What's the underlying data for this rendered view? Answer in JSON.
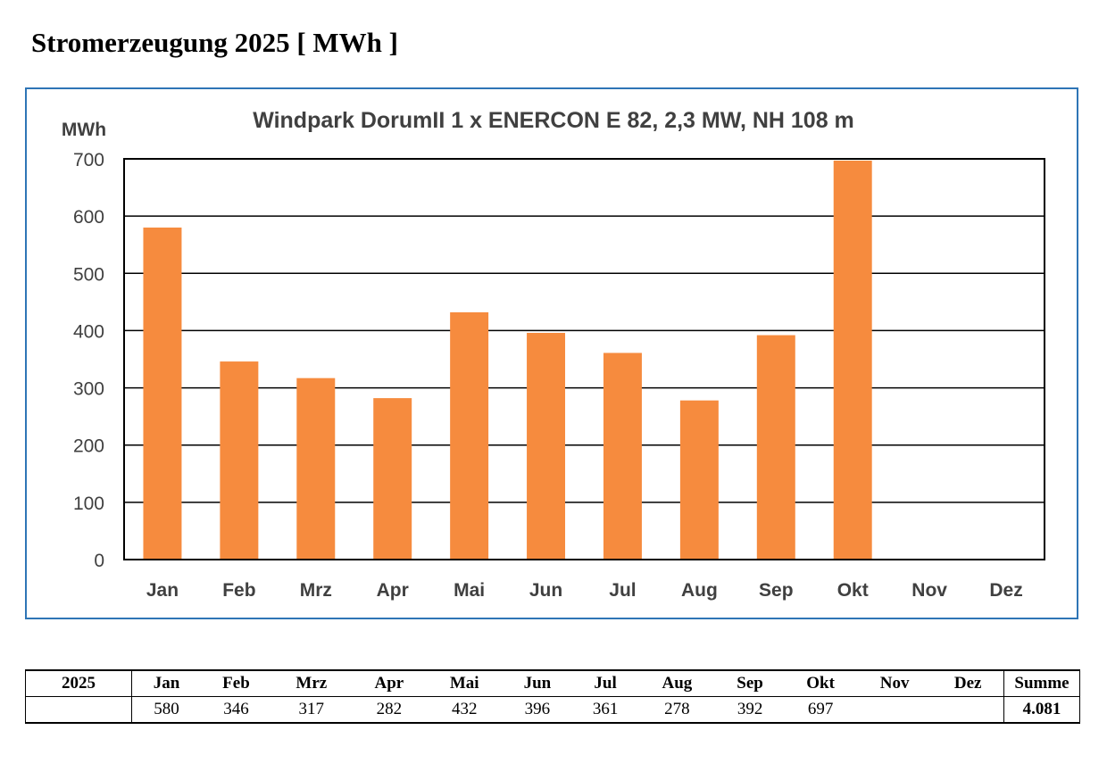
{
  "page": {
    "title": "Stromerzeugung 2025 [ MWh ]"
  },
  "chart_data": {
    "type": "bar",
    "title": "Windpark DorumII  1 x ENERCON E 82, 2,3 MW, NH 108 m",
    "ylabel": "MWh",
    "xlabel": "",
    "ylim": [
      0,
      700
    ],
    "yticks": [
      0,
      100,
      200,
      300,
      400,
      500,
      600,
      700
    ],
    "grid": true,
    "categories": [
      "Jan",
      "Feb",
      "Mrz",
      "Apr",
      "Mai",
      "Jun",
      "Jul",
      "Aug",
      "Sep",
      "Okt",
      "Nov",
      "Dez"
    ],
    "values": [
      580,
      346,
      317,
      282,
      432,
      396,
      361,
      278,
      392,
      697,
      null,
      null
    ],
    "bar_color": "#f68b3e",
    "frame_color": "#2e75b6"
  },
  "table": {
    "year_label": "2025",
    "months": [
      "Jan",
      "Feb",
      "Mrz",
      "Apr",
      "Mai",
      "Jun",
      "Jul",
      "Aug",
      "Sep",
      "Okt",
      "Nov",
      "Dez"
    ],
    "values": [
      "580",
      "346",
      "317",
      "282",
      "432",
      "396",
      "361",
      "278",
      "392",
      "697",
      "",
      ""
    ],
    "sum_label": "Summe",
    "sum_value": "4.081"
  }
}
